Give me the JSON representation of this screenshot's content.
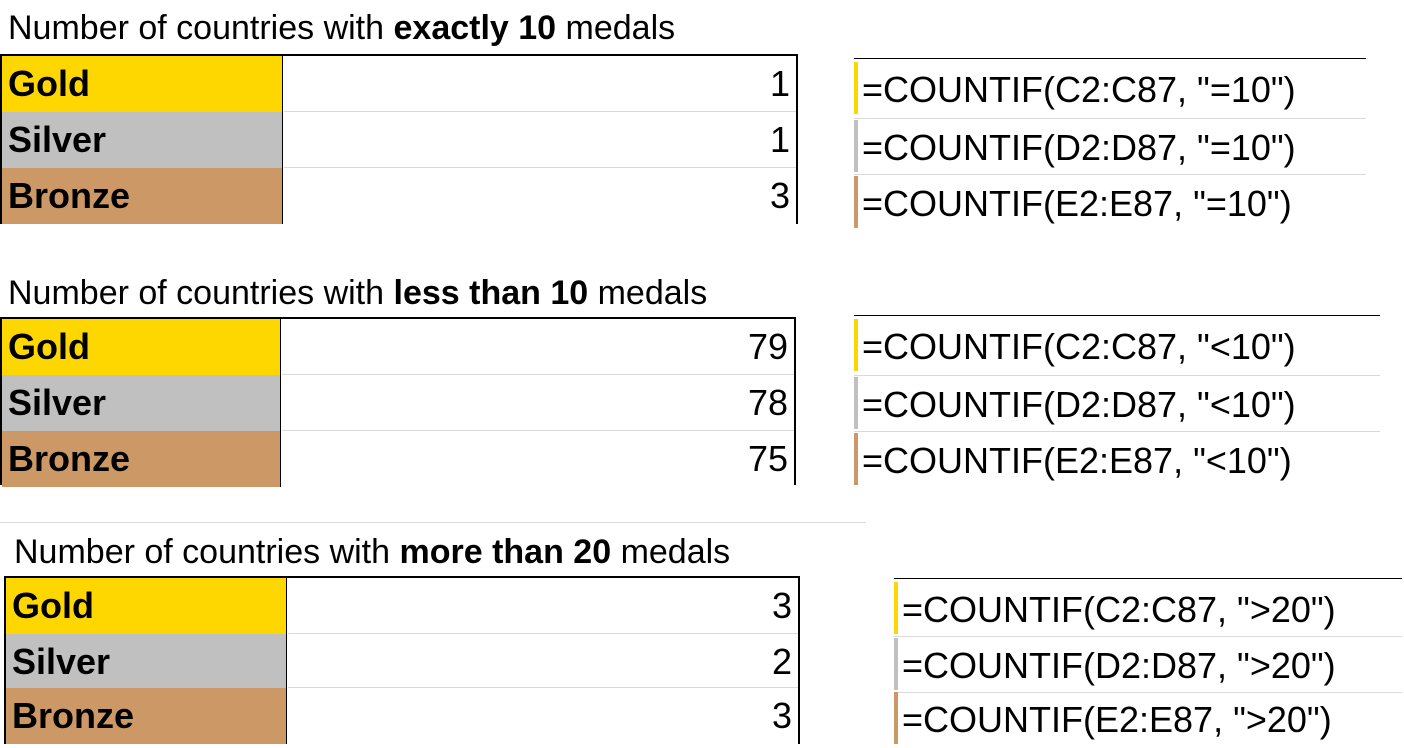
{
  "colors": {
    "gold": "#ffd700",
    "silver": "#c0c0c0",
    "bronze": "#cc9966"
  },
  "sections": [
    {
      "title_prefix": "Number of countries with ",
      "title_bold": "exactly 10",
      "title_suffix": " medals",
      "rows": [
        {
          "label": "Gold",
          "value": "1",
          "formula": "=COUNTIF(C2:C87, \"=10\")"
        },
        {
          "label": "Silver",
          "value": "1",
          "formula": "=COUNTIF(D2:D87, \"=10\")"
        },
        {
          "label": "Bronze",
          "value": "3",
          "formula": "=COUNTIF(E2:E87, \"=10\")"
        }
      ]
    },
    {
      "title_prefix": "Number of countries with ",
      "title_bold": "less than 10",
      "title_suffix": " medals",
      "rows": [
        {
          "label": "Gold",
          "value": "79",
          "formula": "=COUNTIF(C2:C87, \"<10\")"
        },
        {
          "label": "Silver",
          "value": "78",
          "formula": "=COUNTIF(D2:D87, \"<10\")"
        },
        {
          "label": "Bronze",
          "value": "75",
          "formula": "=COUNTIF(E2:E87, \"<10\")"
        }
      ]
    },
    {
      "title_prefix": "Number of countries with ",
      "title_bold": "more than 20",
      "title_suffix": " medals",
      "rows": [
        {
          "label": "Gold",
          "value": "3",
          "formula": "=COUNTIF(C2:C87, \">20\")"
        },
        {
          "label": "Silver",
          "value": "2",
          "formula": "=COUNTIF(D2:D87, \">20\")"
        },
        {
          "label": "Bronze",
          "value": "3",
          "formula": "=COUNTIF(E2:E87, \">20\")"
        }
      ]
    }
  ]
}
